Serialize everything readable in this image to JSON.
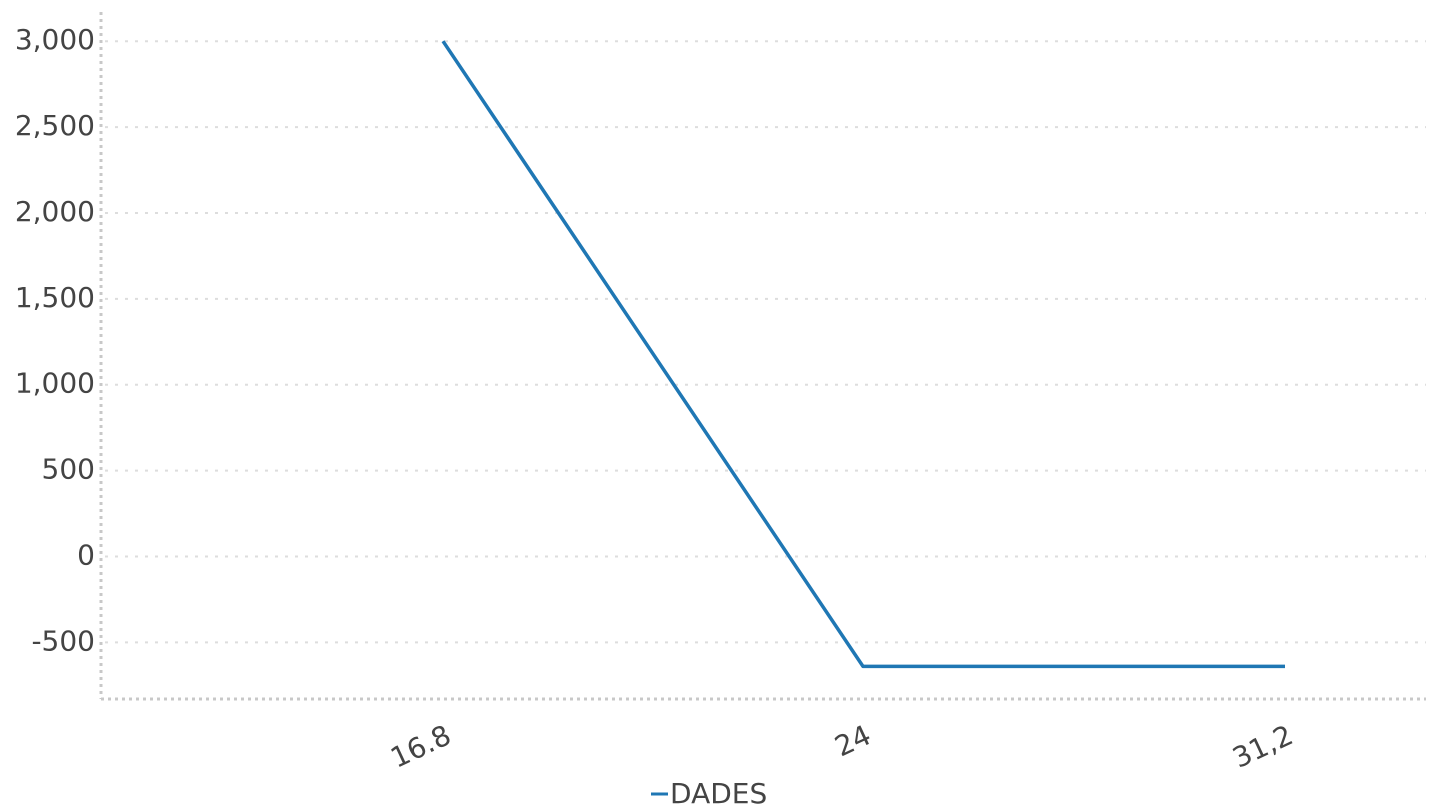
{
  "chart_data": {
    "type": "line",
    "categories": [
      "16.8",
      "24",
      "31,2"
    ],
    "series": [
      {
        "name": "DADES",
        "values": [
          3000,
          -640,
          -640
        ],
        "color": "#1f77b4"
      }
    ],
    "yticks": [
      "3,000",
      "2,500",
      "2,000",
      "1,500",
      "1,000",
      "500",
      "0",
      "-500"
    ],
    "ytick_values": [
      3000,
      2500,
      2000,
      1500,
      1000,
      500,
      0,
      -500
    ],
    "ylim": [
      -830,
      3170
    ],
    "grid": true,
    "legend_position": "bottom-center",
    "colors": {
      "series": "#1f77b4",
      "text": "#444444",
      "grid": "#dddddd",
      "axis": "#c8c8c8"
    }
  }
}
